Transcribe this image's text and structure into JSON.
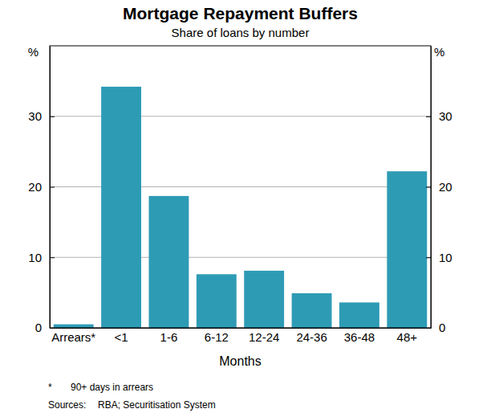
{
  "chart_data": {
    "type": "bar",
    "title": "Mortgage Repayment Buffers",
    "subtitle": "Share of loans by number",
    "x_label": "Months",
    "y_label": "%",
    "categories": [
      "Arrears*",
      "<1",
      "1-6",
      "6-12",
      "12-24",
      "24-36",
      "36-48",
      "48+"
    ],
    "values": [
      0.5,
      34.2,
      18.7,
      7.6,
      8.1,
      4.9,
      3.6,
      22.2
    ],
    "color": "#2e9bb5",
    "ylim": [
      0,
      40
    ],
    "yticks": [
      0,
      10,
      20,
      30
    ],
    "grid": true,
    "notes": [
      {
        "symbol": "*",
        "text": "90+ days in arrears"
      },
      {
        "symbol": "Sources:",
        "text": "RBA; Securitisation System"
      }
    ]
  }
}
